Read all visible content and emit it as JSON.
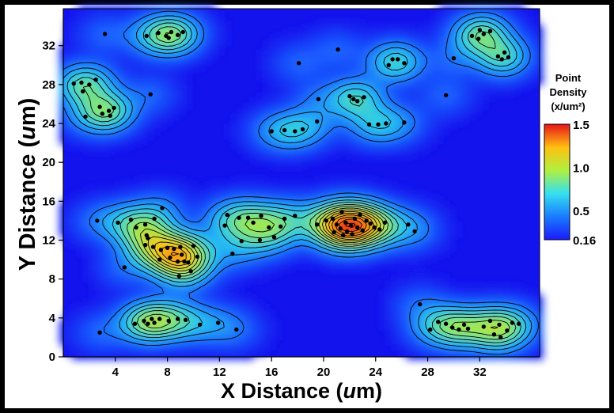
{
  "chart_data": {
    "type": "heatmap",
    "xlabel_main": "X Distance (",
    "xlabel_unit": "u",
    "xlabel_tail": "m)",
    "ylabel_main": "Y Distance (",
    "ylabel_unit": "u",
    "ylabel_tail": "m)",
    "xlim": [
      0,
      36.6
    ],
    "ylim": [
      0,
      35.8
    ],
    "xticks": [
      4,
      8,
      12,
      16,
      20,
      24,
      28,
      32
    ],
    "yticks": [
      0,
      4,
      8,
      12,
      16,
      20,
      24,
      28,
      32
    ],
    "colorbar": {
      "title_line1": "Point",
      "title_line2": "Density",
      "title_line3": "(x/um²)",
      "tick_labels": [
        "1.5",
        "1.0",
        "0.5",
        "0.16"
      ],
      "tick_values": [
        1.5,
        1.0,
        0.5,
        0.16
      ],
      "min": 0.16,
      "max": 1.5
    },
    "points": [
      [
        3.2,
        33.2
      ],
      [
        6.4,
        33.0
      ],
      [
        7.3,
        33.3
      ],
      [
        7.9,
        33.0
      ],
      [
        8.3,
        33.4
      ],
      [
        8.8,
        33.1
      ],
      [
        9.2,
        33.4
      ],
      [
        8.1,
        32.8
      ],
      [
        0.8,
        28.1
      ],
      [
        1.4,
        28.2
      ],
      [
        2.0,
        28.0
      ],
      [
        2.5,
        28.5
      ],
      [
        1.5,
        27.3
      ],
      [
        2.8,
        25.7
      ],
      [
        3.5,
        25.3
      ],
      [
        3.9,
        25.6
      ],
      [
        3.0,
        25.0
      ],
      [
        1.7,
        24.7
      ],
      [
        3.6,
        24.8
      ],
      [
        6.7,
        27.0
      ],
      [
        16.0,
        23.2
      ],
      [
        17.0,
        23.3
      ],
      [
        17.8,
        23.2
      ],
      [
        18.4,
        23.4
      ],
      [
        19.5,
        24.2
      ],
      [
        19.6,
        26.5
      ],
      [
        21.1,
        31.6
      ],
      [
        18.1,
        30.2
      ],
      [
        22.0,
        26.8
      ],
      [
        22.3,
        26.5
      ],
      [
        22.6,
        26.3
      ],
      [
        23.1,
        26.7
      ],
      [
        23.5,
        23.9
      ],
      [
        24.2,
        23.9
      ],
      [
        24.8,
        24.0
      ],
      [
        25.3,
        30.6
      ],
      [
        25.7,
        30.6
      ],
      [
        26.2,
        30.2
      ],
      [
        25.0,
        30.0
      ],
      [
        26.2,
        24.1
      ],
      [
        29.4,
        26.9
      ],
      [
        30.0,
        30.7
      ],
      [
        31.4,
        33.0
      ],
      [
        32.0,
        33.6
      ],
      [
        32.3,
        33.2
      ],
      [
        32.8,
        33.5
      ],
      [
        33.4,
        30.9
      ],
      [
        33.7,
        30.6
      ],
      [
        34.2,
        30.8
      ],
      [
        33.9,
        31.3
      ],
      [
        31.9,
        32.7
      ],
      [
        2.6,
        14.0
      ],
      [
        4.2,
        13.8
      ],
      [
        5.2,
        14.1
      ],
      [
        5.6,
        13.3
      ],
      [
        6.3,
        13.6
      ],
      [
        6.5,
        12.2
      ],
      [
        6.4,
        12.5
      ],
      [
        7.0,
        14.2
      ],
      [
        7.6,
        15.3
      ],
      [
        4.7,
        9.2
      ],
      [
        6.3,
        11.5
      ],
      [
        6.9,
        11.3
      ],
      [
        7.5,
        11.0
      ],
      [
        8.0,
        11.2
      ],
      [
        8.5,
        11.1
      ],
      [
        9.0,
        11.3
      ],
      [
        7.4,
        10.0
      ],
      [
        8.2,
        10.2
      ],
      [
        8.8,
        9.8
      ],
      [
        9.3,
        9.8
      ],
      [
        9.6,
        9.7
      ],
      [
        10.3,
        10.3
      ],
      [
        9.8,
        8.8
      ],
      [
        8.9,
        8.3
      ],
      [
        10.0,
        11.4
      ],
      [
        9.1,
        10.5
      ],
      [
        6.2,
        3.7
      ],
      [
        6.8,
        3.9
      ],
      [
        7.0,
        3.5
      ],
      [
        7.4,
        3.9
      ],
      [
        8.1,
        3.7
      ],
      [
        8.8,
        3.9
      ],
      [
        9.4,
        3.8
      ],
      [
        5.5,
        3.4
      ],
      [
        6.5,
        3.4
      ],
      [
        10.5,
        3.3
      ],
      [
        11.9,
        3.5
      ],
      [
        12.4,
        13.5
      ],
      [
        12.6,
        14.6
      ],
      [
        13.5,
        14.3
      ],
      [
        14.2,
        14.3
      ],
      [
        14.6,
        13.8
      ],
      [
        15.2,
        14.5
      ],
      [
        15.8,
        13.3
      ],
      [
        16.2,
        12.3
      ],
      [
        16.7,
        13.4
      ],
      [
        17.0,
        14.2
      ],
      [
        17.8,
        14.5
      ],
      [
        15.1,
        12.0
      ],
      [
        13.7,
        11.9
      ],
      [
        13.0,
        10.6
      ],
      [
        13.3,
        2.8
      ],
      [
        2.8,
        2.5
      ],
      [
        19.5,
        13.6
      ],
      [
        20.2,
        14.0
      ],
      [
        20.7,
        14.2
      ],
      [
        21.0,
        13.6
      ],
      [
        21.3,
        13.2
      ],
      [
        21.7,
        13.8
      ],
      [
        21.8,
        12.9
      ],
      [
        22.1,
        13.5
      ],
      [
        22.4,
        14.2
      ],
      [
        22.6,
        13.3
      ],
      [
        23.0,
        13.0
      ],
      [
        23.3,
        14.0
      ],
      [
        23.6,
        13.7
      ],
      [
        23.9,
        13.3
      ],
      [
        24.3,
        13.1
      ],
      [
        24.7,
        13.8
      ],
      [
        21.4,
        14.9
      ],
      [
        22.8,
        14.6
      ],
      [
        20.8,
        12.8
      ],
      [
        21.5,
        12.5
      ],
      [
        22.2,
        12.6
      ],
      [
        26.5,
        13.6
      ],
      [
        27.0,
        12.9
      ],
      [
        27.4,
        5.4
      ],
      [
        28.2,
        2.8
      ],
      [
        28.8,
        3.6
      ],
      [
        29.4,
        3.4
      ],
      [
        29.9,
        3.0
      ],
      [
        30.4,
        2.8
      ],
      [
        30.8,
        3.3
      ],
      [
        31.1,
        2.9
      ],
      [
        32.3,
        3.1
      ],
      [
        32.8,
        3.7
      ],
      [
        33.1,
        2.3
      ],
      [
        33.5,
        3.3
      ],
      [
        34.1,
        2.7
      ],
      [
        34.5,
        3.5
      ],
      [
        35.0,
        3.4
      ],
      [
        33.6,
        2.0
      ]
    ]
  }
}
